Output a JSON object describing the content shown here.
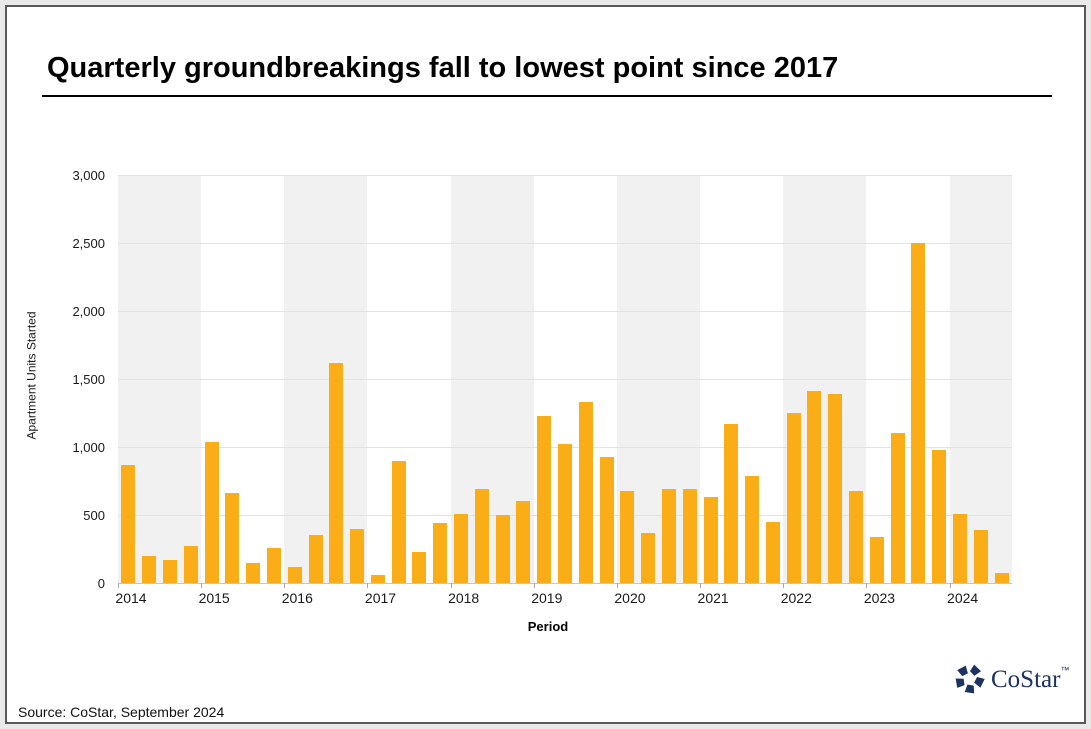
{
  "title": "Quarterly groundbreakings fall to lowest point since 2017",
  "source": "Source: CoStar, September 2024",
  "logo": {
    "text": "CoStar",
    "tm": "™",
    "color": "#1b3262"
  },
  "colors": {
    "bar": "#fbad18",
    "stripe": "#f1f1f1",
    "gridline": "#e2e2e2",
    "baseline": "#c6c6c6",
    "tick": "#a8a8a8",
    "frame_border": "#58595b",
    "page_background": "#e9e9e9",
    "title_text": "#000000"
  },
  "chart_data": {
    "type": "bar",
    "title": "Quarterly groundbreakings fall to lowest point since 2017",
    "xlabel": "Period",
    "ylabel": "Apartment Units Started",
    "ylim": [
      0,
      3000
    ],
    "ytick_step": 500,
    "ytick_labels": [
      "0",
      "500",
      "1,000",
      "1,500",
      "2,000",
      "2,500",
      "3,000"
    ],
    "grid": "horizontal",
    "legend": "none",
    "year_labels": [
      "2014",
      "2015",
      "2016",
      "2017",
      "2018",
      "2019",
      "2020",
      "2021",
      "2022",
      "2023",
      "2024"
    ],
    "quarters_per_year": [
      4,
      4,
      4,
      4,
      4,
      4,
      4,
      4,
      4,
      4,
      3
    ],
    "categories": [
      "2014 Q1",
      "2014 Q2",
      "2014 Q3",
      "2014 Q4",
      "2015 Q1",
      "2015 Q2",
      "2015 Q3",
      "2015 Q4",
      "2016 Q1",
      "2016 Q2",
      "2016 Q3",
      "2016 Q4",
      "2017 Q1",
      "2017 Q2",
      "2017 Q3",
      "2017 Q4",
      "2018 Q1",
      "2018 Q2",
      "2018 Q3",
      "2018 Q4",
      "2019 Q1",
      "2019 Q2",
      "2019 Q3",
      "2019 Q4",
      "2020 Q1",
      "2020 Q2",
      "2020 Q3",
      "2020 Q4",
      "2021 Q1",
      "2021 Q2",
      "2021 Q3",
      "2021 Q4",
      "2022 Q1",
      "2022 Q2",
      "2022 Q3",
      "2022 Q4",
      "2023 Q1",
      "2023 Q2",
      "2023 Q3",
      "2023 Q4",
      "2024 Q1",
      "2024 Q2",
      "2024 Q3"
    ],
    "values": [
      870,
      200,
      170,
      270,
      1040,
      660,
      150,
      260,
      120,
      350,
      1620,
      400,
      60,
      900,
      230,
      440,
      510,
      690,
      500,
      600,
      1230,
      1020,
      1330,
      930,
      680,
      370,
      690,
      690,
      630,
      1170,
      790,
      450,
      1250,
      1410,
      1390,
      680,
      340,
      1100,
      2500,
      980,
      510,
      390,
      70
    ]
  }
}
